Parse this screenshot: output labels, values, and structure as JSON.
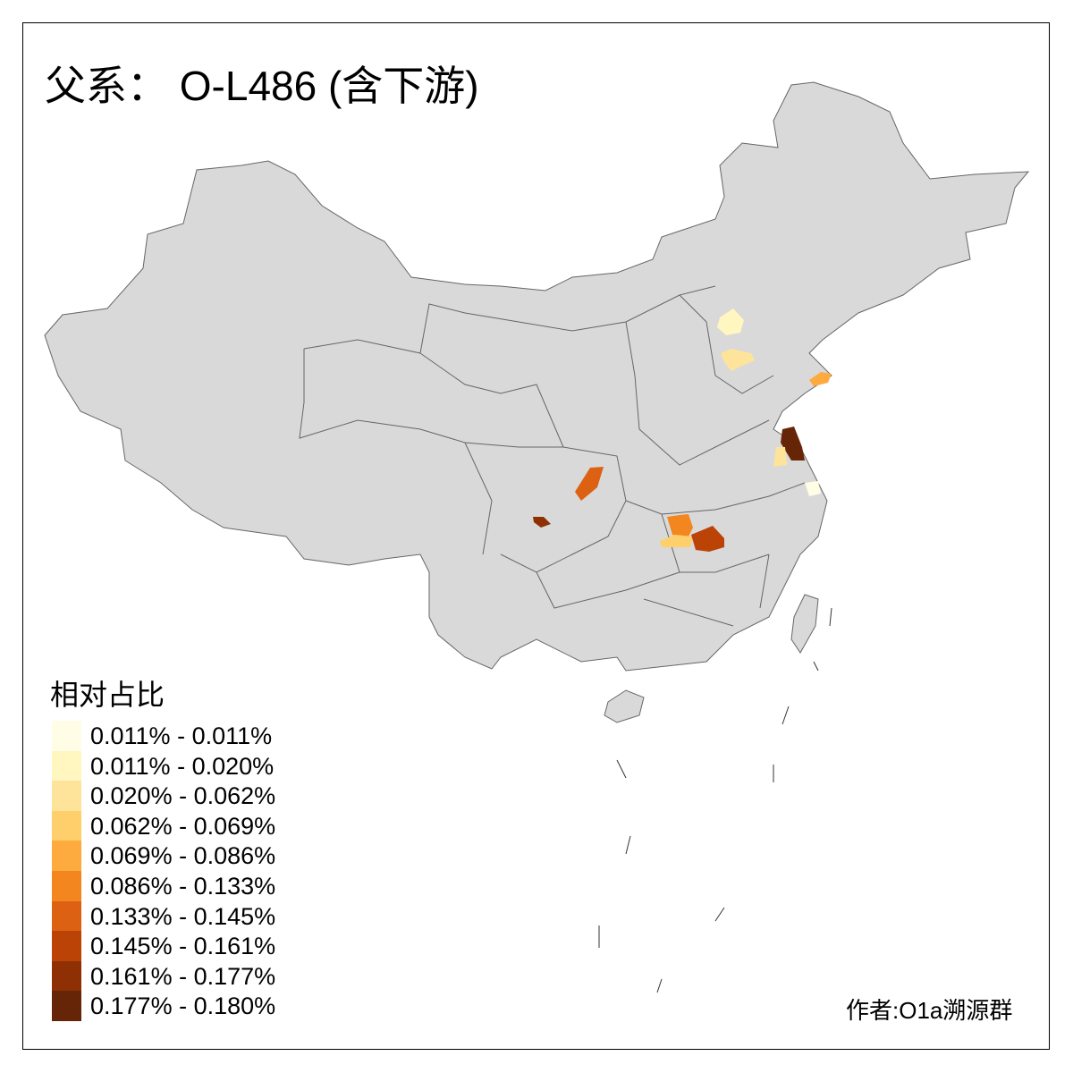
{
  "title": "父系： O-L486 (含下游)",
  "legend": {
    "title": "相对占比",
    "items": [
      {
        "label": "0.011% - 0.011%",
        "color": "#fffde6"
      },
      {
        "label": "0.011% - 0.020%",
        "color": "#fff6c0"
      },
      {
        "label": "0.020% - 0.062%",
        "color": "#fee49a"
      },
      {
        "label": "0.062% - 0.069%",
        "color": "#fecf6a"
      },
      {
        "label": "0.069% - 0.086%",
        "color": "#fdab3e"
      },
      {
        "label": "0.086% - 0.133%",
        "color": "#f3861f"
      },
      {
        "label": "0.133% - 0.145%",
        "color": "#dd6112"
      },
      {
        "label": "0.145% - 0.161%",
        "color": "#bc4306"
      },
      {
        "label": "0.161% - 0.177%",
        "color": "#8f3004"
      },
      {
        "label": "0.177% - 0.180%",
        "color": "#662506"
      }
    ]
  },
  "map": {
    "base_color": "#d9d9d9",
    "border_color": "#666666",
    "no_data_color": "#d9d9d9"
  },
  "author": "作者:O1a溯源群"
}
